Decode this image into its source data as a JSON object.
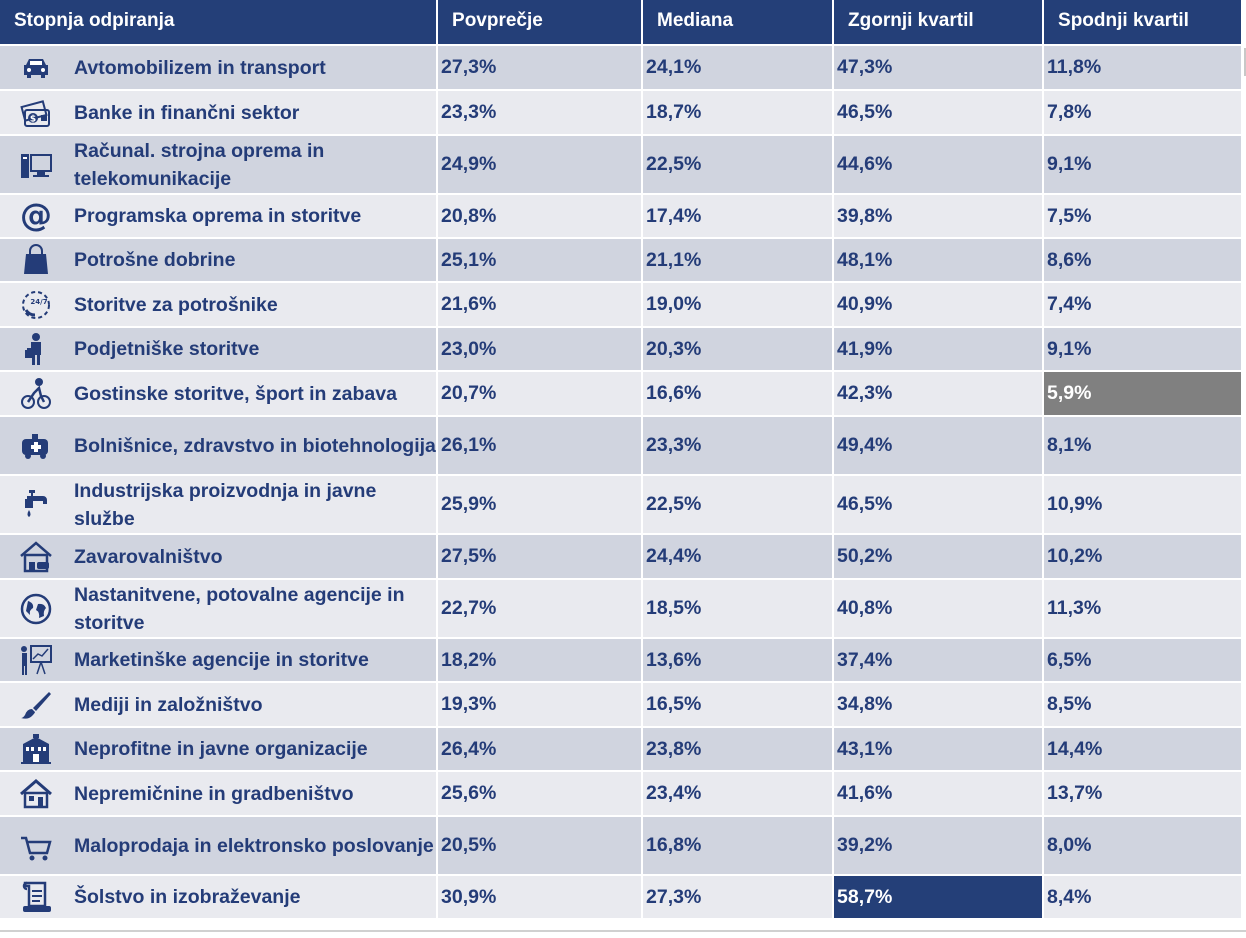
{
  "header": {
    "col_sector": "Stopnja odpiranja",
    "col_avg": "Povprečje",
    "col_median": "Mediana",
    "col_upper": "Zgornji kvartil",
    "col_lower": "Spodnji kvartil"
  },
  "rows": [
    {
      "icon": "car-icon",
      "name": "Avtomobilizem in transport",
      "avg": "27,3%",
      "median": "24,1%",
      "upper": "47,3%",
      "lower": "11,8%"
    },
    {
      "icon": "money-icon",
      "name": "Banke in finančni sektor",
      "avg": "23,3%",
      "median": "18,7%",
      "upper": "46,5%",
      "lower": "7,8%"
    },
    {
      "icon": "computer-icon",
      "name": "Računal. strojna oprema in telekomunikacije",
      "avg": "24,9%",
      "median": "22,5%",
      "upper": "44,6%",
      "lower": "9,1%"
    },
    {
      "icon": "at-sign-icon",
      "name": "Programska oprema in storitve",
      "avg": "20,8%",
      "median": "17,4%",
      "upper": "39,8%",
      "lower": "7,5%"
    },
    {
      "icon": "shopping-bag-icon",
      "name": "Potrošne dobrine",
      "avg": "25,1%",
      "median": "21,1%",
      "upper": "48,1%",
      "lower": "8,6%"
    },
    {
      "icon": "support-24-7-icon",
      "name": "Storitve za potrošnike",
      "avg": "21,6%",
      "median": "19,0%",
      "upper": "40,9%",
      "lower": "7,4%"
    },
    {
      "icon": "businessman-icon",
      "name": "Podjetniške storitve",
      "avg": "23,0%",
      "median": "20,3%",
      "upper": "41,9%",
      "lower": "9,1%"
    },
    {
      "icon": "cyclist-icon",
      "name": "Gostinske storitve, šport in zabava",
      "avg": "20,7%",
      "median": "16,6%",
      "upper": "42,3%",
      "lower": "5,9%"
    },
    {
      "icon": "ambulance-icon",
      "name": "Bolnišnice, zdravstvo in biotehnologija",
      "avg": "26,1%",
      "median": "23,3%",
      "upper": "49,4%",
      "lower": "8,1%"
    },
    {
      "icon": "faucet-icon",
      "name": "Industrijska proizvodnja in javne službe",
      "avg": "25,9%",
      "median": "22,5%",
      "upper": "46,5%",
      "lower": "10,9%"
    },
    {
      "icon": "house-car-icon",
      "name": "Zavarovalništvo",
      "avg": "27,5%",
      "median": "24,4%",
      "upper": "50,2%",
      "lower": "10,2%"
    },
    {
      "icon": "globe-icon",
      "name": "Nastanitvene, potovalne agencije in storitve",
      "avg": "22,7%",
      "median": "18,5%",
      "upper": "40,8%",
      "lower": "11,3%"
    },
    {
      "icon": "presentation-icon",
      "name": "Marketinške agencije in storitve",
      "avg": "18,2%",
      "median": "13,6%",
      "upper": "37,4%",
      "lower": "6,5%"
    },
    {
      "icon": "paintbrush-icon",
      "name": "Mediji in založništvo",
      "avg": "19,3%",
      "median": "16,5%",
      "upper": "34,8%",
      "lower": "8,5%"
    },
    {
      "icon": "building-icon",
      "name": "Neprofitne in javne organizacije",
      "avg": "26,4%",
      "median": "23,8%",
      "upper": "43,1%",
      "lower": "14,4%"
    },
    {
      "icon": "house-icon",
      "name": "Nepremičnine in gradbeništvo",
      "avg": "25,6%",
      "median": "23,4%",
      "upper": "41,6%",
      "lower": "13,7%"
    },
    {
      "icon": "cart-icon",
      "name": "Maloprodaja in elektronsko poslovanje",
      "avg": "20,5%",
      "median": "16,8%",
      "upper": "39,2%",
      "lower": "8,0%"
    },
    {
      "icon": "scroll-icon",
      "name": "Šolstvo in izobraževanje",
      "avg": "30,9%",
      "median": "27,3%",
      "upper": "58,7%",
      "lower": "8,4%"
    }
  ],
  "highlights": {
    "lowest_lower_quartile_color": "#808080",
    "highest_upper_quartile_color": "#243f78"
  },
  "colors": {
    "header_bg": "#243f78",
    "text": "#243c78",
    "row_dark": "#d0d4df",
    "row_light": "#e9eaef"
  }
}
